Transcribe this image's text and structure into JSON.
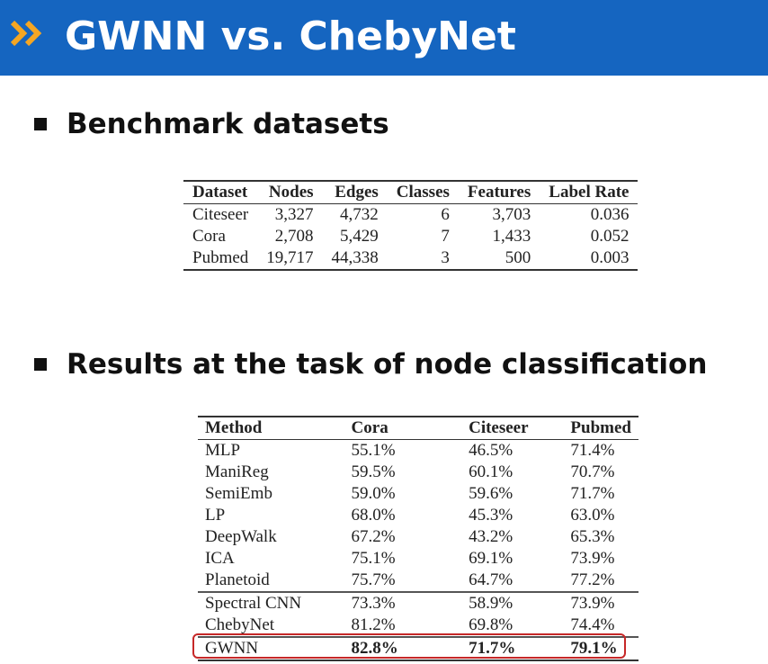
{
  "header": {
    "title": "GWNN vs. ChebyNet",
    "accent_color": "#f5a623",
    "background_color": "#1565c0",
    "icon": "double-chevron-right-icon"
  },
  "section1": {
    "heading": "Benchmark datasets",
    "table": {
      "columns": [
        "Dataset",
        "Nodes",
        "Edges",
        "Classes",
        "Features",
        "Label Rate"
      ],
      "rows": [
        [
          "Citeseer",
          "3,327",
          "4,732",
          "6",
          "3,703",
          "0.036"
        ],
        [
          "Cora",
          "2,708",
          "5,429",
          "7",
          "1,433",
          "0.052"
        ],
        [
          "Pubmed",
          "19,717",
          "44,338",
          "3",
          "500",
          "0.003"
        ]
      ]
    }
  },
  "section2": {
    "heading": "Results at the task of node classification",
    "table": {
      "columns": [
        "Method",
        "Cora",
        "Citeseer",
        "Pubmed"
      ],
      "rows": [
        [
          "MLP",
          "55.1%",
          "46.5%",
          "71.4%"
        ],
        [
          "ManiReg",
          "59.5%",
          "60.1%",
          "70.7%"
        ],
        [
          "SemiEmb",
          "59.0%",
          "59.6%",
          "71.7%"
        ],
        [
          "LP",
          "68.0%",
          "45.3%",
          "63.0%"
        ],
        [
          "DeepWalk",
          "67.2%",
          "43.2%",
          "65.3%"
        ],
        [
          "ICA",
          "75.1%",
          "69.1%",
          "73.9%"
        ],
        [
          "Planetoid",
          "75.7%",
          "64.7%",
          "77.2%"
        ],
        [
          "Spectral CNN",
          "73.3%",
          "58.9%",
          "73.9%"
        ],
        [
          "ChebyNet",
          "81.2%",
          "69.8%",
          "74.4%"
        ],
        [
          "GWNN",
          "82.8%",
          "71.7%",
          "79.1%"
        ]
      ],
      "highlight_color": "#c62828"
    }
  }
}
